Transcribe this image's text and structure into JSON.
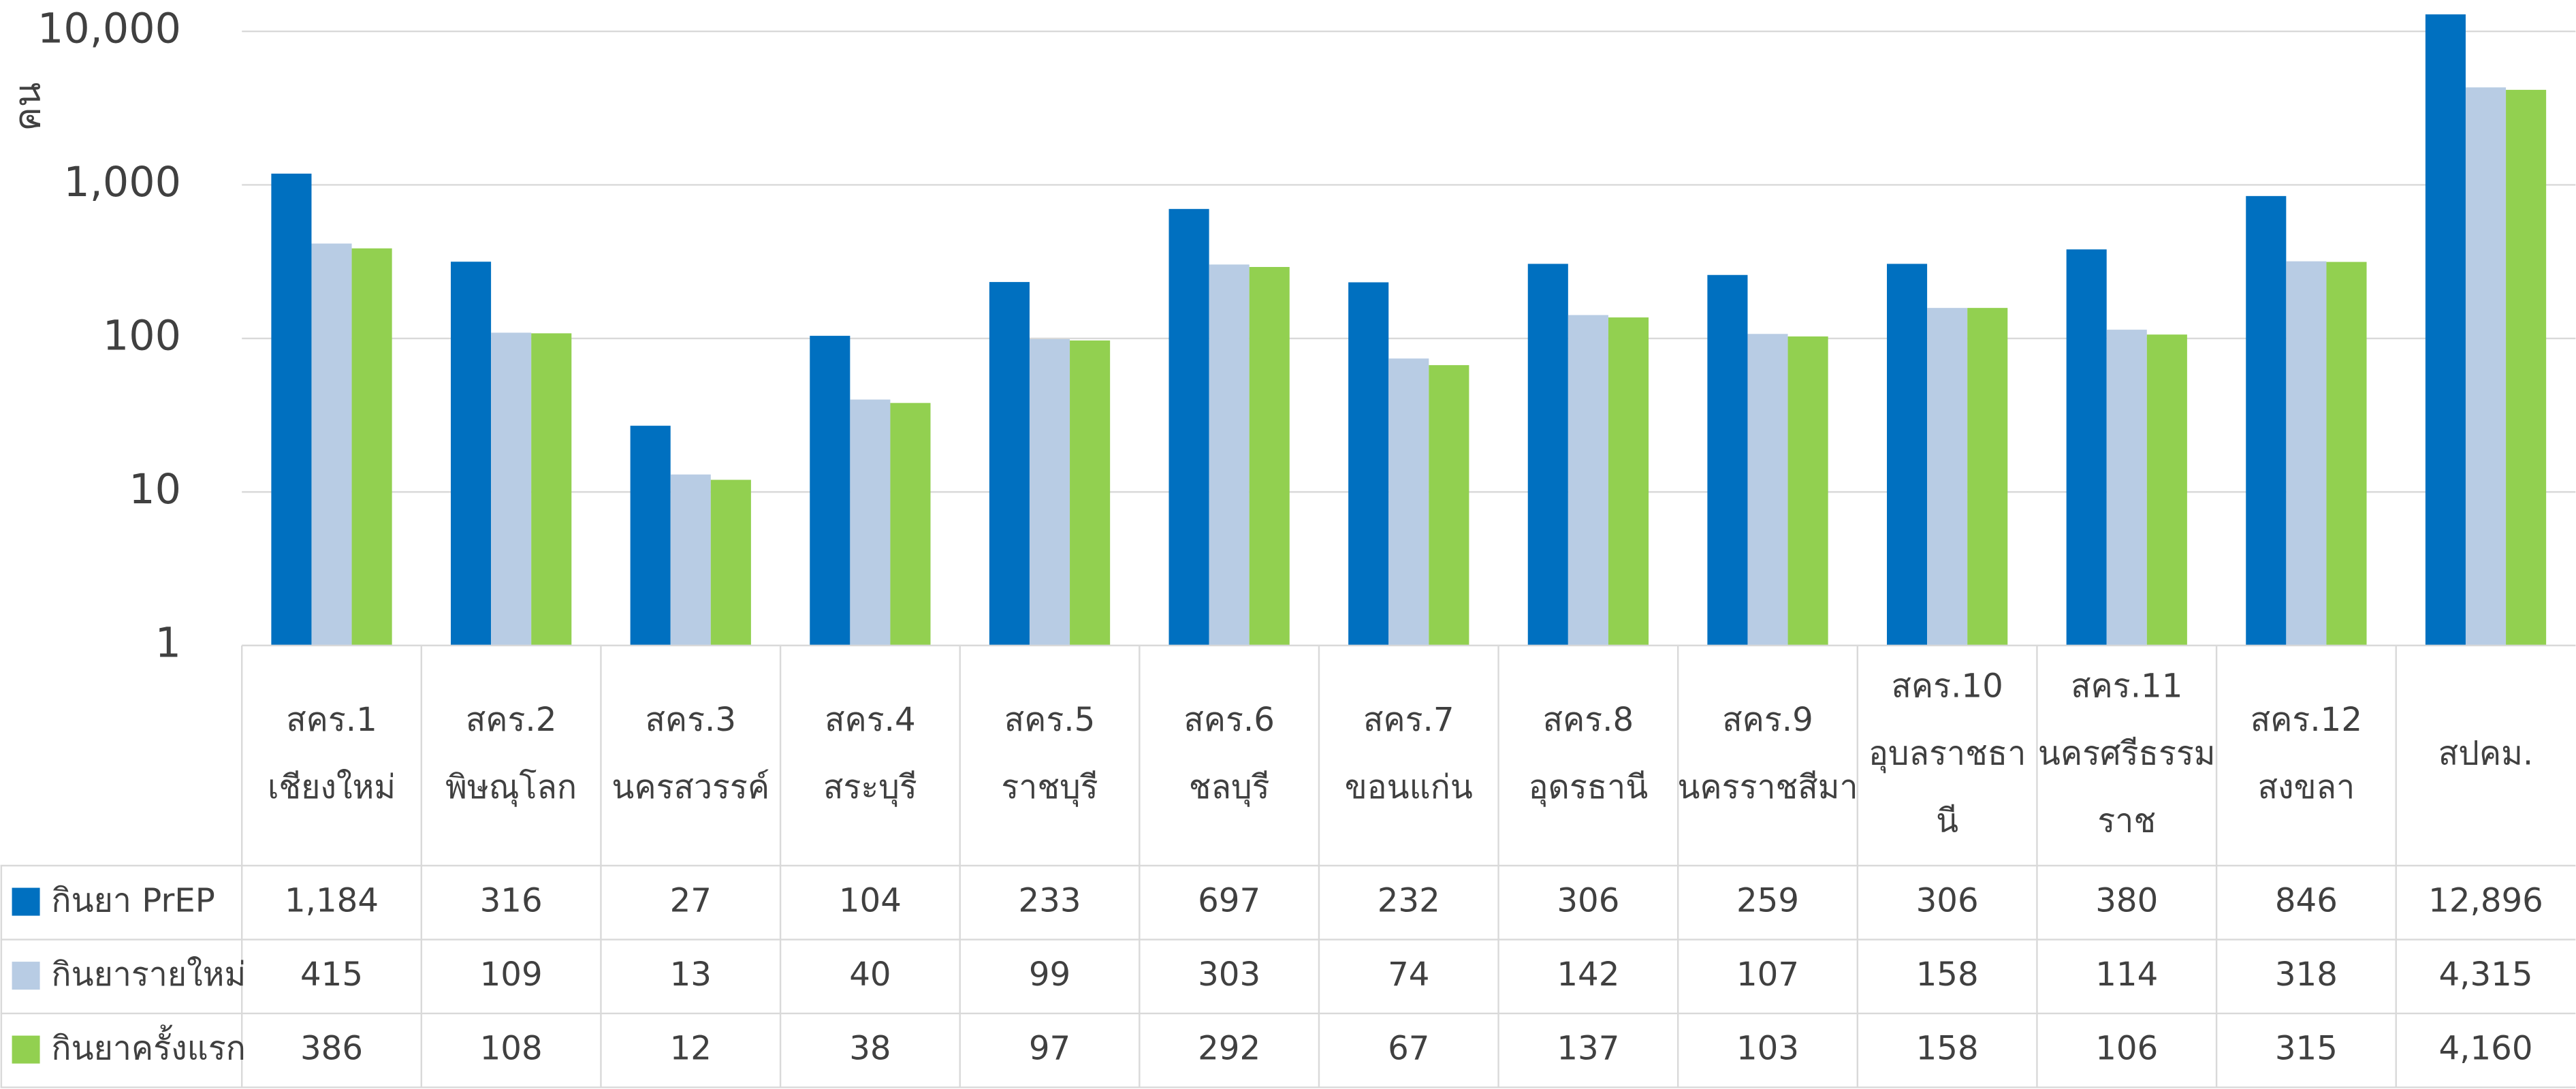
{
  "chart_data": {
    "type": "bar",
    "y_axis_label": "คน",
    "log_scale": true,
    "grid": true,
    "categories": [
      [
        "สคร.1",
        "เชียงใหม่"
      ],
      [
        "สคร.2",
        "พิษณุโลก"
      ],
      [
        "สคร.3",
        "นครสวรรค์"
      ],
      [
        "สคร.4",
        "สระบุรี"
      ],
      [
        "สคร.5",
        "ราชบุรี"
      ],
      [
        "สคร.6",
        "ชลบุรี"
      ],
      [
        "สคร.7",
        "ขอนแก่น"
      ],
      [
        "สคร.8",
        "อุดรธานี"
      ],
      [
        "สคร.9",
        "นครราชสีมา"
      ],
      [
        "สคร.10",
        "อุบลราชธา",
        "นี"
      ],
      [
        "สคร.11",
        "นครศรีธรรม",
        "ราช"
      ],
      [
        "สคร.12",
        "สงขลา"
      ],
      [
        "สปคม."
      ]
    ],
    "series": [
      {
        "name": "กินยา PrEP",
        "color": "#0070c0",
        "values": [
          1184,
          316,
          27,
          104,
          233,
          697,
          232,
          306,
          259,
          306,
          380,
          846,
          12896
        ],
        "value_labels": [
          "1,184",
          "316",
          "27",
          "104",
          "233",
          "697",
          "232",
          "306",
          "259",
          "306",
          "380",
          "846",
          "12,896"
        ]
      },
      {
        "name": "กินยารายใหม่",
        "color": "#b8cce4",
        "values": [
          415,
          109,
          13,
          40,
          99,
          303,
          74,
          142,
          107,
          158,
          114,
          318,
          4315
        ],
        "value_labels": [
          "415",
          "109",
          "13",
          "40",
          "99",
          "303",
          "74",
          "142",
          "107",
          "158",
          "114",
          "318",
          "4,315"
        ]
      },
      {
        "name": "กินยาครั้งแรก",
        "color": "#92d050",
        "values": [
          386,
          108,
          12,
          38,
          97,
          292,
          67,
          137,
          103,
          158,
          106,
          315,
          4160
        ],
        "value_labels": [
          "386",
          "108",
          "12",
          "38",
          "97",
          "292",
          "67",
          "137",
          "103",
          "158",
          "106",
          "315",
          "4,160"
        ]
      }
    ],
    "ylim": [
      1,
      16000
    ],
    "yticks": [
      1,
      10,
      100,
      {
        "value": 1000,
        "label": "1,000"
      },
      {
        "value": 10000,
        "label": "10,000"
      }
    ]
  }
}
